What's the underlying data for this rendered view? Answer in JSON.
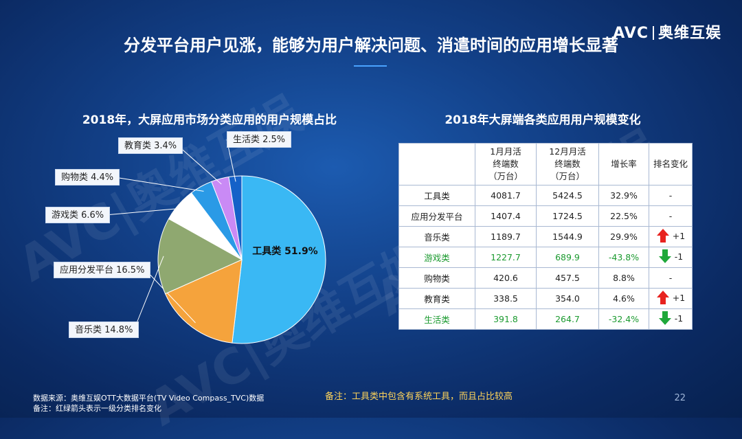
{
  "brand": {
    "left": "AVC",
    "right": "奥维互娱"
  },
  "page_title": "分发平台用户见涨，能够为用户解决问题、消遣时间的应用增长显著",
  "watermark": "AVC|奥维互娱",
  "colors": {
    "background": "#123f86",
    "accent": "#4aa3ff",
    "note": "#ffd45a",
    "up_arrow": "#e8231f",
    "down_arrow": "#1fa83a",
    "green_text": "#1b9a2f"
  },
  "chart_data": [
    {
      "type": "pie",
      "title": "2018年，大屏应用市场分类应用的用户规模占比",
      "slices": [
        {
          "label": "工具类",
          "value": 51.9,
          "display": "51.9%",
          "color": "#3ab8f4"
        },
        {
          "label": "应用分发平台",
          "value": 16.5,
          "display": "16.5%",
          "color": "#f5a33c"
        },
        {
          "label": "音乐类",
          "value": 14.8,
          "display": "14.8%",
          "color": "#8fa870"
        },
        {
          "label": "游戏类",
          "value": 6.6,
          "display": "6.6%",
          "color": "#ffffff"
        },
        {
          "label": "购物类",
          "value": 4.4,
          "display": "4.4%",
          "color": "#2a9ae6"
        },
        {
          "label": "教育类",
          "value": 3.4,
          "display": "3.4%",
          "color": "#c98af5"
        },
        {
          "label": "生活类",
          "value": 2.5,
          "display": "2.5%",
          "color": "#1561c8"
        }
      ]
    },
    {
      "type": "table",
      "title": "2018年大屏端各类应用用户规模变化",
      "columns": [
        "",
        "1月月活\n终端数\n（万台）",
        "12月月活\n终端数\n（万台）",
        "增长率",
        "排名变化"
      ],
      "rows": [
        {
          "cat": "工具类",
          "jan": "4081.7",
          "dec": "5424.5",
          "growth": "32.9%",
          "rank": "-",
          "dir": "",
          "green": false
        },
        {
          "cat": "应用分发平台",
          "jan": "1407.4",
          "dec": "1724.5",
          "growth": "22.5%",
          "rank": "-",
          "dir": "",
          "green": false
        },
        {
          "cat": "音乐类",
          "jan": "1189.7",
          "dec": "1544.9",
          "growth": "29.9%",
          "rank": "+1",
          "dir": "up",
          "green": false
        },
        {
          "cat": "游戏类",
          "jan": "1227.7",
          "dec": "689.9",
          "growth": "-43.8%",
          "rank": "-1",
          "dir": "down",
          "green": true
        },
        {
          "cat": "购物类",
          "jan": "420.6",
          "dec": "457.5",
          "growth": "8.8%",
          "rank": "-",
          "dir": "",
          "green": false
        },
        {
          "cat": "教育类",
          "jan": "338.5",
          "dec": "354.0",
          "growth": "4.6%",
          "rank": "+1",
          "dir": "up",
          "green": false
        },
        {
          "cat": "生活类",
          "jan": "391.8",
          "dec": "264.7",
          "growth": "-32.4%",
          "rank": "-1",
          "dir": "down",
          "green": true
        }
      ]
    }
  ],
  "note": "备注：工具类中包含有系统工具，而且占比较高",
  "source": [
    "数据来源：奥维互娱OTT大数据平台(TV Video Compass_TVC)数据",
    "备注：红绿箭头表示一级分类排名变化"
  ],
  "page_number": "22"
}
